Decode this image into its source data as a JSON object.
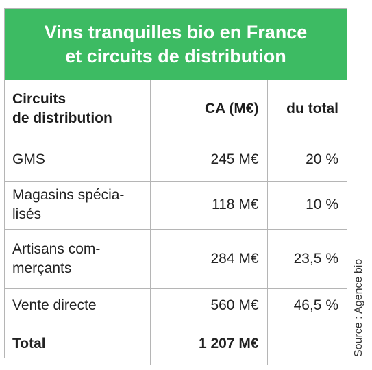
{
  "chart_data": {
    "type": "table",
    "title": "Vins tranquilles bio en France\net circuits de distribution",
    "columns": [
      "Circuits\nde distribution",
      "CA (M€)",
      "du total"
    ],
    "rows": [
      {
        "circuit": "GMS",
        "ca": "245 M€",
        "share": "20 %"
      },
      {
        "circuit": "Magasins spécia-\nlisés",
        "ca": "118 M€",
        "share": "10 %"
      },
      {
        "circuit": "Artisans com-\nmerçants",
        "ca": "284 M€",
        "share": "23,5 %"
      },
      {
        "circuit": "Vente directe",
        "ca": "560 M€",
        "share": "46,5 %"
      }
    ],
    "total": {
      "label": "Total",
      "ca": "1 207 M€",
      "share": ""
    },
    "values_meur": [
      245,
      118,
      284,
      560
    ],
    "values_percent": [
      20,
      10,
      23.5,
      46.5
    ],
    "source": "Source : Agence bio"
  },
  "colors": {
    "header_background": "#3dbb63",
    "header_text": "#ffffff",
    "border": "#b5b5b5"
  }
}
